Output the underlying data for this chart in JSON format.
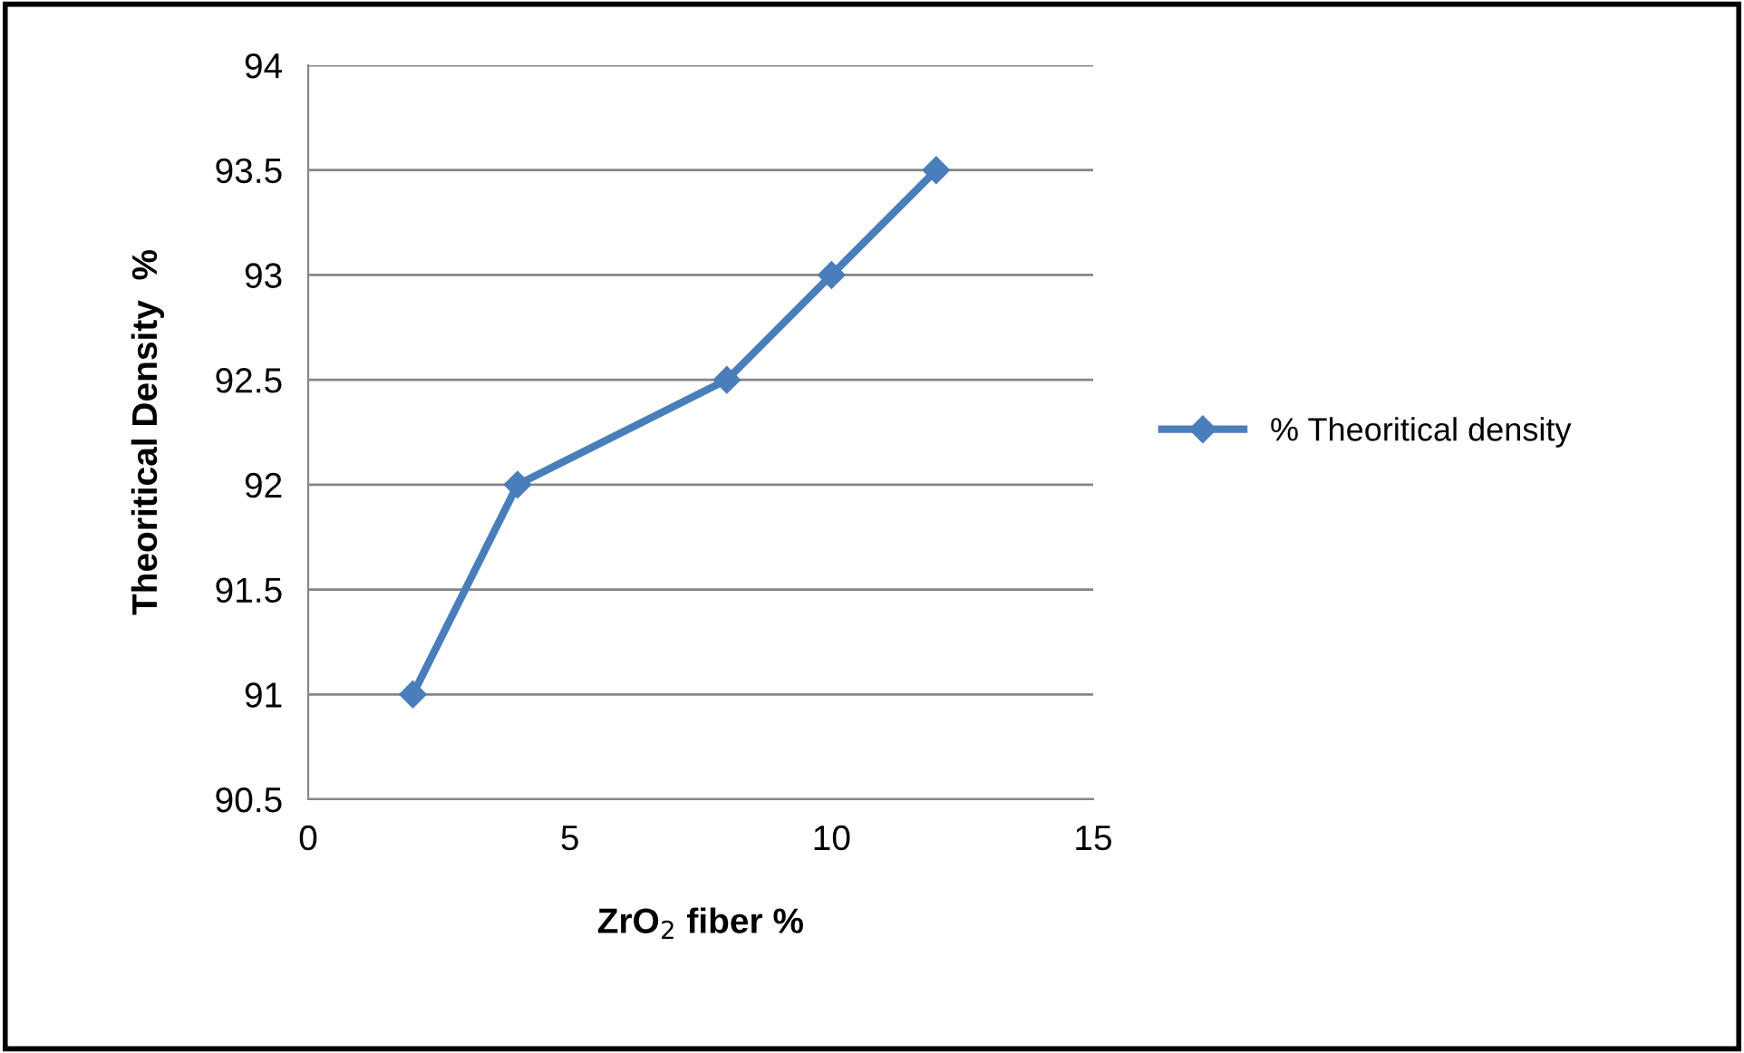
{
  "chart_data": {
    "type": "line",
    "xlabel": "ZrO$_{2}$ fiber %",
    "ylabel": "Theoritical Density  %",
    "x": [
      2,
      4,
      8,
      10,
      12
    ],
    "series": [
      {
        "name": "% Theoritical density",
        "color": "#4a7ebb",
        "values": [
          91,
          92,
          92.5,
          93,
          93.5
        ]
      }
    ],
    "xlim": [
      0,
      15
    ],
    "xticks": [
      0,
      5,
      10,
      15
    ],
    "ylim": [
      90.5,
      94
    ],
    "yticks": [
      90.5,
      91,
      91.5,
      92,
      92.5,
      93,
      93.5,
      94
    ],
    "grid": "y",
    "legend": "right",
    "marker": "diamond",
    "line_style": "solid"
  }
}
